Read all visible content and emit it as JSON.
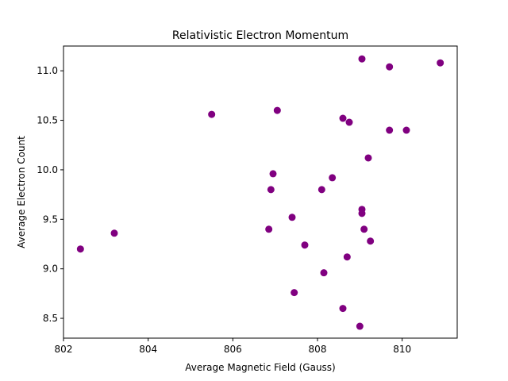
{
  "chart_data": {
    "type": "scatter",
    "title": "Relativistic Electron Momentum",
    "xlabel": "Average Magnetic Field (Gauss)",
    "ylabel": "Average Electron Count",
    "xlim": [
      802.0,
      811.3
    ],
    "ylim": [
      8.3,
      11.25
    ],
    "x_ticks": [
      802,
      804,
      806,
      808,
      810
    ],
    "x_tick_labels": [
      "802",
      "804",
      "806",
      "808",
      "810"
    ],
    "y_ticks": [
      8.5,
      9.0,
      9.5,
      10.0,
      10.5,
      11.0
    ],
    "y_tick_labels": [
      "8.5",
      "9.0",
      "9.5",
      "10.0",
      "10.5",
      "11.0"
    ],
    "grid": false,
    "legend": "none",
    "marker_color": "#800080",
    "points": [
      {
        "x": 802.4,
        "y": 9.2
      },
      {
        "x": 803.2,
        "y": 9.36
      },
      {
        "x": 805.5,
        "y": 10.56
      },
      {
        "x": 806.85,
        "y": 9.4
      },
      {
        "x": 806.9,
        "y": 9.8
      },
      {
        "x": 806.95,
        "y": 9.96
      },
      {
        "x": 807.05,
        "y": 10.6
      },
      {
        "x": 807.4,
        "y": 9.52
      },
      {
        "x": 807.45,
        "y": 8.76
      },
      {
        "x": 807.7,
        "y": 9.24
      },
      {
        "x": 808.1,
        "y": 9.8
      },
      {
        "x": 808.15,
        "y": 8.96
      },
      {
        "x": 808.35,
        "y": 9.92
      },
      {
        "x": 808.6,
        "y": 10.52
      },
      {
        "x": 808.6,
        "y": 8.6
      },
      {
        "x": 808.7,
        "y": 9.12
      },
      {
        "x": 808.75,
        "y": 10.48
      },
      {
        "x": 809.0,
        "y": 8.42
      },
      {
        "x": 809.05,
        "y": 11.12
      },
      {
        "x": 809.05,
        "y": 9.6
      },
      {
        "x": 809.05,
        "y": 9.56
      },
      {
        "x": 809.1,
        "y": 9.4
      },
      {
        "x": 809.2,
        "y": 10.12
      },
      {
        "x": 809.25,
        "y": 9.28
      },
      {
        "x": 809.7,
        "y": 11.04
      },
      {
        "x": 809.7,
        "y": 10.4
      },
      {
        "x": 810.1,
        "y": 10.4
      },
      {
        "x": 810.9,
        "y": 11.08
      }
    ]
  }
}
